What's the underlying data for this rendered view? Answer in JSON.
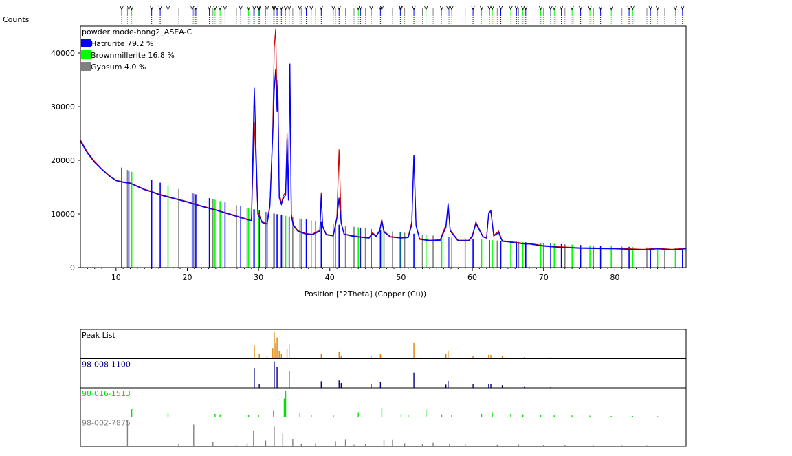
{
  "chart_data": [
    {
      "type": "line",
      "y_axis_title": "Counts",
      "xlabel": "Position [°2Theta] (Copper (Cu))",
      "xlim": [
        5,
        90
      ],
      "ylim": [
        0,
        45000
      ],
      "x_ticks": [
        10,
        20,
        30,
        40,
        50,
        60,
        70,
        80
      ],
      "y_ticks": [
        0,
        10000,
        20000,
        30000,
        40000
      ],
      "legend_title": "powder mode-hong2_ASEA-C",
      "legend_position": "top-left",
      "legend": [
        {
          "label": "Hatrurite 79.2 %",
          "color": "#0000ff"
        },
        {
          "label": "Brownmillerite 16.8 %",
          "color": "#00ff00"
        },
        {
          "label": "Gypsum 4.0 %",
          "color": "#808080"
        }
      ],
      "series": [
        {
          "role": "observed",
          "color": "#d00000",
          "x": [
            5,
            6,
            7,
            8,
            9,
            10,
            11,
            12,
            13,
            14,
            15,
            16,
            18,
            20,
            22,
            24,
            26,
            28,
            29,
            29.4,
            29.9,
            30.5,
            31.2,
            31.6,
            32.0,
            32.2,
            32.4,
            32.6,
            32.7,
            32.9,
            33.2,
            33.5,
            33.8,
            34.0,
            34.2,
            34.4,
            34.6,
            34.9,
            35.5,
            36.5,
            37.5,
            38.6,
            38.8,
            39.0,
            39.5,
            40.5,
            41.0,
            41.3,
            41.6,
            42.0,
            43.0,
            44.0,
            45.5,
            46.0,
            46.5,
            47.0,
            47.3,
            47.6,
            48.5,
            50.0,
            51.0,
            51.5,
            51.8,
            52.1,
            52.6,
            54.0,
            55.5,
            56.3,
            56.6,
            56.9,
            58.0,
            59.5,
            60.0,
            60.5,
            61.5,
            62.0,
            62.3,
            62.6,
            63.0,
            63.7,
            64.2,
            65.0,
            67.3,
            68.0,
            70.0,
            72.0,
            75.0,
            80.0,
            84.0,
            86.0,
            88.0,
            90.0
          ],
          "y": [
            23800,
            21500,
            19800,
            18400,
            17200,
            16300,
            16000,
            15800,
            15200,
            14600,
            14200,
            13700,
            13000,
            12300,
            11500,
            10800,
            10000,
            9200,
            8800,
            27000,
            10500,
            8500,
            8200,
            12000,
            26000,
            41000,
            44500,
            30000,
            35000,
            14000,
            12000,
            13500,
            14000,
            25000,
            13000,
            37000,
            10000,
            8000,
            6900,
            6400,
            6200,
            7000,
            14000,
            7800,
            6200,
            6000,
            9500,
            22000,
            8500,
            6300,
            6000,
            5800,
            5600,
            6500,
            5900,
            7000,
            9000,
            6800,
            5800,
            5600,
            5700,
            8500,
            21000,
            8000,
            5400,
            5100,
            5200,
            8000,
            11500,
            7000,
            5100,
            5100,
            6000,
            8500,
            5800,
            5600,
            10000,
            10500,
            6000,
            6800,
            5000,
            4900,
            4500,
            4500,
            4100,
            3900,
            3700,
            3600,
            3400,
            3600,
            3400,
            3600
          ]
        },
        {
          "role": "calculated",
          "color": "#0000ff",
          "x": [
            5,
            6,
            7,
            8,
            9,
            10,
            11,
            12,
            13,
            14,
            15,
            16,
            18,
            20,
            22,
            24,
            26,
            28,
            29,
            29.4,
            29.9,
            30.5,
            31.2,
            31.6,
            32.0,
            32.2,
            32.4,
            32.6,
            32.7,
            32.9,
            33.2,
            33.5,
            33.8,
            34.0,
            34.2,
            34.4,
            34.6,
            34.9,
            35.5,
            36.5,
            37.5,
            38.6,
            38.8,
            39.0,
            39.5,
            40.5,
            41.0,
            41.3,
            41.6,
            42.0,
            43.0,
            44.0,
            45.5,
            46.0,
            46.5,
            47.0,
            47.3,
            47.6,
            48.5,
            50.0,
            51.0,
            51.5,
            51.8,
            52.1,
            52.6,
            54.0,
            55.5,
            56.3,
            56.6,
            56.9,
            58.0,
            59.5,
            60.0,
            60.5,
            61.5,
            62.0,
            62.3,
            62.6,
            63.0,
            63.7,
            64.2,
            65.0,
            67.3,
            68.0,
            70.0,
            72.0,
            75.0,
            80.0,
            84.0,
            86.0,
            88.0,
            90.0
          ],
          "y": [
            23500,
            21300,
            19600,
            18300,
            17100,
            16200,
            15900,
            15700,
            15100,
            14500,
            14100,
            13600,
            12900,
            12200,
            11400,
            10700,
            9900,
            9100,
            8700,
            33500,
            10000,
            8400,
            8100,
            11500,
            25000,
            33000,
            37000,
            29000,
            34000,
            13000,
            11800,
            13000,
            13500,
            24000,
            12500,
            38000,
            9500,
            7800,
            6800,
            6300,
            6100,
            6800,
            13500,
            7600,
            6100,
            5900,
            9200,
            13000,
            8300,
            6200,
            5900,
            5700,
            5500,
            6300,
            5800,
            6800,
            8800,
            6600,
            5700,
            5500,
            5600,
            8000,
            21000,
            7800,
            5300,
            5000,
            5100,
            7500,
            12000,
            6800,
            5000,
            5000,
            5800,
            8200,
            5700,
            5500,
            10200,
            10600,
            5900,
            6500,
            4900,
            4800,
            4400,
            4400,
            4000,
            3800,
            3600,
            3500,
            3300,
            3500,
            3300,
            3500
          ]
        }
      ],
      "reference_phases": [
        {
          "name": "Hatrurite",
          "color": "#0000ff",
          "x": [
            10.8,
            11.8,
            15.0,
            16.2,
            20.7,
            21.2,
            23.1,
            25.3,
            27.5,
            29.4,
            30.1,
            31.2,
            32.2,
            32.6,
            33.2,
            34.3,
            36.7,
            38.8,
            41.3,
            44.3,
            45.8,
            47.1,
            49.9,
            51.8,
            56.6,
            60.1,
            62.4,
            64.0,
            66.2,
            67.5,
            71.0,
            72.5,
            75.2,
            78.0,
            82.0,
            85.0,
            89.5
          ]
        },
        {
          "name": "Brownmillerite",
          "color": "#00ff00",
          "x": [
            12.2,
            17.3,
            23.9,
            24.6,
            28.6,
            30.0,
            32.1,
            33.8,
            35.8,
            37.4,
            40.5,
            44.0,
            47.3,
            50.0,
            53.5,
            55.7,
            57.1,
            61.3,
            62.8,
            65.4,
            67.1,
            69.6,
            71.5,
            74.0,
            76.5,
            79.5,
            82.5,
            86.0,
            88.5
          ]
        },
        {
          "name": "Gypsum",
          "color": "#808080",
          "x": [
            11.6,
            18.8,
            20.9,
            23.6,
            26.9,
            28.4,
            29.3,
            31.0,
            32.2,
            33.4,
            34.8,
            36.0,
            38.0,
            40.8,
            42.2,
            43.4,
            45.0,
            47.6,
            48.8,
            50.5,
            53.0,
            54.5,
            56.8,
            59.0,
            63.5,
            66.5,
            70.0,
            73.0,
            77.0,
            81.0,
            84.5,
            87.0
          ]
        }
      ]
    },
    {
      "type": "bar",
      "panels": [
        {
          "label": "Peak List",
          "color": "#e08000",
          "x": [
            5.5,
            9,
            10.8,
            12.2,
            15,
            16.2,
            20.7,
            23.1,
            25.3,
            27.5,
            29.4,
            30.1,
            31.2,
            32.0,
            32.2,
            32.4,
            32.6,
            32.9,
            33.2,
            34.0,
            34.3,
            38.8,
            41.3,
            41.6,
            45.8,
            47.1,
            47.3,
            51.8,
            54.5,
            56.3,
            56.6,
            58.5,
            60.1,
            62.3,
            62.6,
            64.2,
            67.3,
            71,
            75,
            78,
            80,
            84,
            86,
            88
          ],
          "y": [
            4,
            2,
            3,
            4,
            3,
            3,
            3,
            4,
            3,
            3,
            52,
            18,
            10,
            40,
            100,
            60,
            80,
            30,
            20,
            35,
            55,
            20,
            25,
            12,
            10,
            18,
            12,
            60,
            4,
            20,
            30,
            4,
            12,
            15,
            14,
            10,
            6,
            5,
            3,
            3,
            4,
            3,
            3,
            3
          ]
        },
        {
          "label": "98-008-1100",
          "color": "#000080",
          "x": [
            29.4,
            30.1,
            32.2,
            32.6,
            34.3,
            38.8,
            41.3,
            41.6,
            45.8,
            47.1,
            51.8,
            56.3,
            56.6,
            60.1,
            62.3,
            62.6,
            64.2,
            67.3,
            71.0
          ],
          "y": [
            75,
            15,
            100,
            80,
            63,
            25,
            28,
            18,
            14,
            22,
            58,
            12,
            26,
            14,
            14,
            14,
            10,
            6,
            4
          ]
        },
        {
          "label": "98-016-1513",
          "color": "#00e000",
          "x": [
            12.2,
            17.3,
            23.9,
            24.6,
            28.6,
            30.0,
            32.1,
            33.6,
            33.8,
            35.8,
            37.4,
            40.5,
            44.0,
            47.3,
            50.0,
            51.0,
            53.5,
            55.7,
            57.1,
            61.3,
            62.8,
            65.4,
            67.1,
            69.6,
            71.5,
            74.0,
            76.5,
            79.5,
            82.5,
            86.0
          ],
          "y": [
            30,
            15,
            12,
            10,
            8,
            8,
            26,
            70,
            100,
            15,
            8,
            6,
            18,
            35,
            10,
            8,
            28,
            10,
            8,
            12,
            18,
            12,
            10,
            8,
            6,
            6,
            5,
            4,
            4,
            3
          ]
        },
        {
          "label": "98-002-7875",
          "color": "#808080",
          "x": [
            11.6,
            18.8,
            20.9,
            23.6,
            26.9,
            28.4,
            29.3,
            31.0,
            32.2,
            33.4,
            34.8,
            36.0,
            38.0,
            40.8,
            42.2,
            43.4,
            45.0,
            47.6,
            48.8,
            50.5,
            53.0,
            54.5,
            56.8,
            59.0,
            63.5,
            66.5,
            70.0,
            73.0,
            77.0,
            81.0,
            84.5,
            87.0
          ],
          "y": [
            100,
            8,
            82,
            18,
            4,
            12,
            60,
            22,
            74,
            48,
            28,
            10,
            12,
            20,
            25,
            6,
            8,
            24,
            24,
            12,
            10,
            14,
            9,
            10,
            6,
            6,
            5,
            5,
            4,
            4,
            4,
            3
          ]
        }
      ]
    }
  ]
}
